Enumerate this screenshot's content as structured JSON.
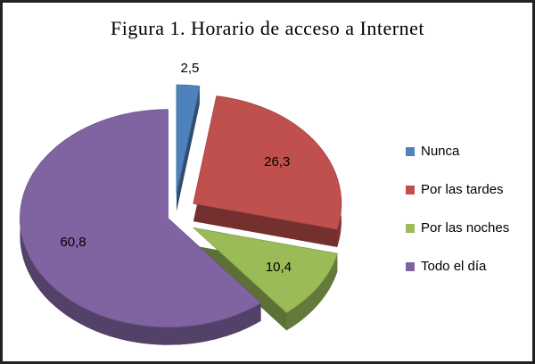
{
  "chart_data": {
    "type": "pie",
    "title": "Figura 1. Horario de acceso a Internet",
    "categories": [
      "Nunca",
      "Por las tardes",
      "Por las noches",
      "Todo el día"
    ],
    "values": [
      2.5,
      26.3,
      10.4,
      60.8
    ],
    "value_labels": [
      "2,5",
      "26,3",
      "10,4",
      "60,8"
    ],
    "colors": [
      "#4f81bd",
      "#c0504d",
      "#9bbb59",
      "#8064a2"
    ],
    "legend": "right"
  }
}
